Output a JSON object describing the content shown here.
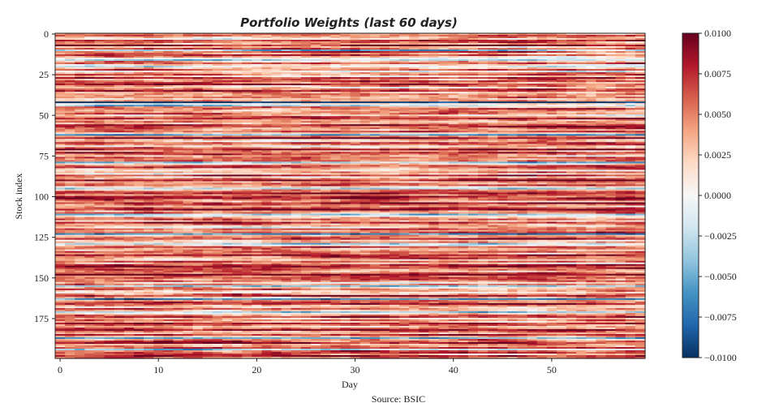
{
  "chart_data": {
    "type": "heatmap",
    "title": "Portfolio Weights (last 60 days)",
    "xlabel": "Day",
    "ylabel": "Stock index",
    "source": "Source: BSIC",
    "x_range": [
      0,
      59
    ],
    "y_range": [
      0,
      199
    ],
    "n_days": 60,
    "n_stocks": 200,
    "x_ticks": [
      "0",
      "10",
      "20",
      "30",
      "40",
      "50"
    ],
    "y_ticks": [
      "0",
      "25",
      "50",
      "75",
      "100",
      "125",
      "150",
      "175"
    ],
    "colorbar": {
      "colormap": "RdBu_r",
      "vmin": -0.01,
      "vmax": 0.01,
      "ticks": [
        "0.0100",
        "0.0075",
        "0.0050",
        "0.0025",
        "0.0000",
        "−0.0025",
        "−0.0050",
        "−0.0075",
        "−0.0100"
      ]
    },
    "stock_mean_weight": [
      0.004,
      0.006,
      0.003,
      0.002,
      0.007,
      0.004,
      0.005,
      0.009,
      0.003,
      0.006,
      -0.004,
      0.005,
      0.004,
      0.007,
      0.003,
      0.0,
      -0.002,
      0.004,
      0.006,
      0.001,
      -0.003,
      0.002,
      0.005,
      0.0,
      0.004,
      0.007,
      0.003,
      0.008,
      0.004,
      0.006,
      0.005,
      0.009,
      0.004,
      0.002,
      0.006,
      0.008,
      0.004,
      0.005,
      0.003,
      0.006,
      0.002,
      0.004,
      -0.01,
      0.0,
      -0.003,
      0.005,
      0.007,
      0.004,
      0.003,
      0.006,
      0.002,
      0.005,
      0.008,
      0.004,
      0.006,
      0.003,
      0.009,
      0.007,
      0.005,
      0.004,
      0.006,
      0.002,
      -0.006,
      0.005,
      0.008,
      0.004,
      0.003,
      0.007,
      0.005,
      0.002,
      0.006,
      0.009,
      0.004,
      0.008,
      0.005,
      0.003,
      0.007,
      0.004,
      0.006,
      -0.005,
      0.003,
      0.006,
      0.008,
      0.004,
      0.002,
      0.005,
      0.001,
      0.007,
      0.003,
      0.006,
      0.009,
      0.004,
      0.005,
      0.007,
      0.003,
      -0.003,
      0.004,
      0.006,
      0.008,
      0.005,
      0.007,
      0.009,
      0.006,
      0.004,
      0.008,
      0.005,
      0.003,
      0.006,
      0.009,
      0.004,
      0.005,
      -0.004,
      0.001,
      0.004,
      0.006,
      0.003,
      0.008,
      0.005,
      0.004,
      0.002,
      0.007,
      0.004,
      0.006,
      -0.006,
      0.003,
      0.005,
      0.008,
      0.002,
      0.004,
      -0.003,
      0.001,
      0.006,
      0.005,
      0.003,
      0.007,
      0.004,
      0.009,
      0.006,
      0.005,
      0.003,
      0.006,
      0.004,
      0.008,
      0.009,
      0.007,
      0.005,
      0.003,
      0.006,
      0.009,
      0.005,
      0.007,
      0.004,
      0.006,
      0.002,
      0.005,
      -0.004,
      0.003,
      0.006,
      0.004,
      0.001,
      0.005,
      0.008,
      0.003,
      -0.005,
      0.004,
      0.006,
      0.007,
      0.005,
      0.002,
      0.006,
      0.004,
      -0.004,
      0.003,
      0.005,
      0.007,
      0.004,
      0.006,
      0.003,
      0.008,
      0.005,
      0.004,
      0.006,
      0.009,
      0.005,
      0.003,
      0.007,
      0.004,
      -0.006,
      0.005,
      0.006,
      0.008,
      0.004,
      0.003,
      0.006,
      -0.003,
      0.005,
      0.007,
      0.004,
      0.008,
      0.006
    ],
    "day_noise_std": 0.0022
  }
}
